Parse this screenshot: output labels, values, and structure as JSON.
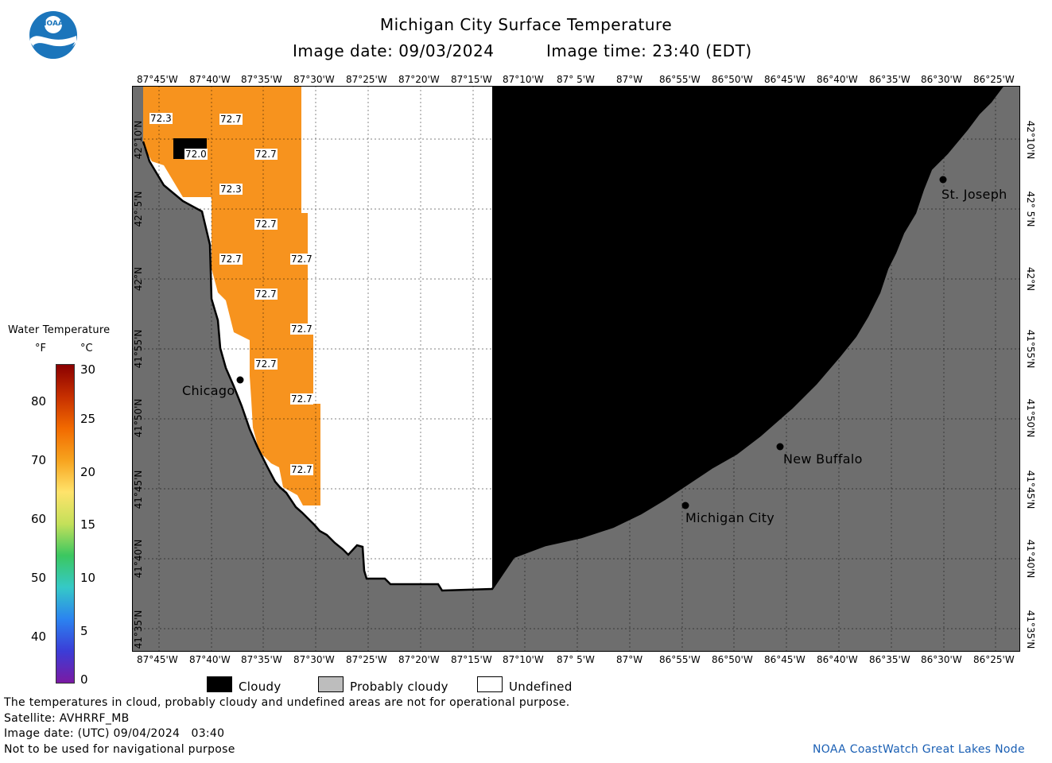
{
  "header": {
    "title": "Michigan City Surface Temperature",
    "image_date": "Image date: 09/03/2024",
    "image_time": "Image time: 23:40 (EDT)"
  },
  "logo": {
    "text": "NOAA",
    "icon": "noaa-logo-icon"
  },
  "axes": {
    "longitude_labels": [
      "87°45'W",
      "87°40'W",
      "87°35'W",
      "87°30'W",
      "87°25'W",
      "87°20'W",
      "87°15'W",
      "87°10'W",
      "87° 5'W",
      "87°W",
      "86°55'W",
      "86°50'W",
      "86°45'W",
      "86°40'W",
      "86°35'W",
      "86°30'W",
      "86°25'W"
    ],
    "latitude_labels": [
      "42°10'N",
      "42° 5'N",
      "42°N",
      "41°55'N",
      "41°50'N",
      "41°45'N",
      "41°40'N",
      "41°35'N"
    ]
  },
  "colorbar": {
    "title": "Water Temperature",
    "unit_f": "°F",
    "unit_c": "°C",
    "f_ticks": [
      "40",
      "50",
      "60",
      "70",
      "80"
    ],
    "c_ticks": [
      "0",
      "5",
      "10",
      "15",
      "20",
      "25",
      "30"
    ]
  },
  "map": {
    "cities": [
      {
        "name": "Chicago"
      },
      {
        "name": "Michigan City"
      },
      {
        "name": "New Buffalo"
      },
      {
        "name": "St. Joseph"
      }
    ],
    "temperature_labels": [
      "72.3",
      "72.7",
      "72.0",
      "72.7",
      "72.3",
      "72.7",
      "72.7",
      "72.7",
      "72.7",
      "72.7",
      "72.7",
      "72.7",
      "72.7"
    ],
    "colors": {
      "land": "#6e6e6e",
      "cloudy": "#000000",
      "undefined": "#ffffff",
      "warm_water": "#f7931e",
      "grid": "#000000"
    }
  },
  "legend": {
    "items": [
      {
        "label": "Cloudy",
        "color": "#000000"
      },
      {
        "label": "Probably cloudy",
        "color": "#bdbdbd"
      },
      {
        "label": "Undefined",
        "color": "#ffffff"
      }
    ]
  },
  "footer": {
    "line1": "The temperatures in cloud, probably cloudy and undefined areas are not for operational purpose.",
    "line2": "Satellite: AVHRRF_MB",
    "line3": "Image date: (UTC) 09/04/2024   03:40",
    "line4": "Not to be used for navigational purpose",
    "credit": "NOAA CoastWatch Great Lakes Node"
  }
}
